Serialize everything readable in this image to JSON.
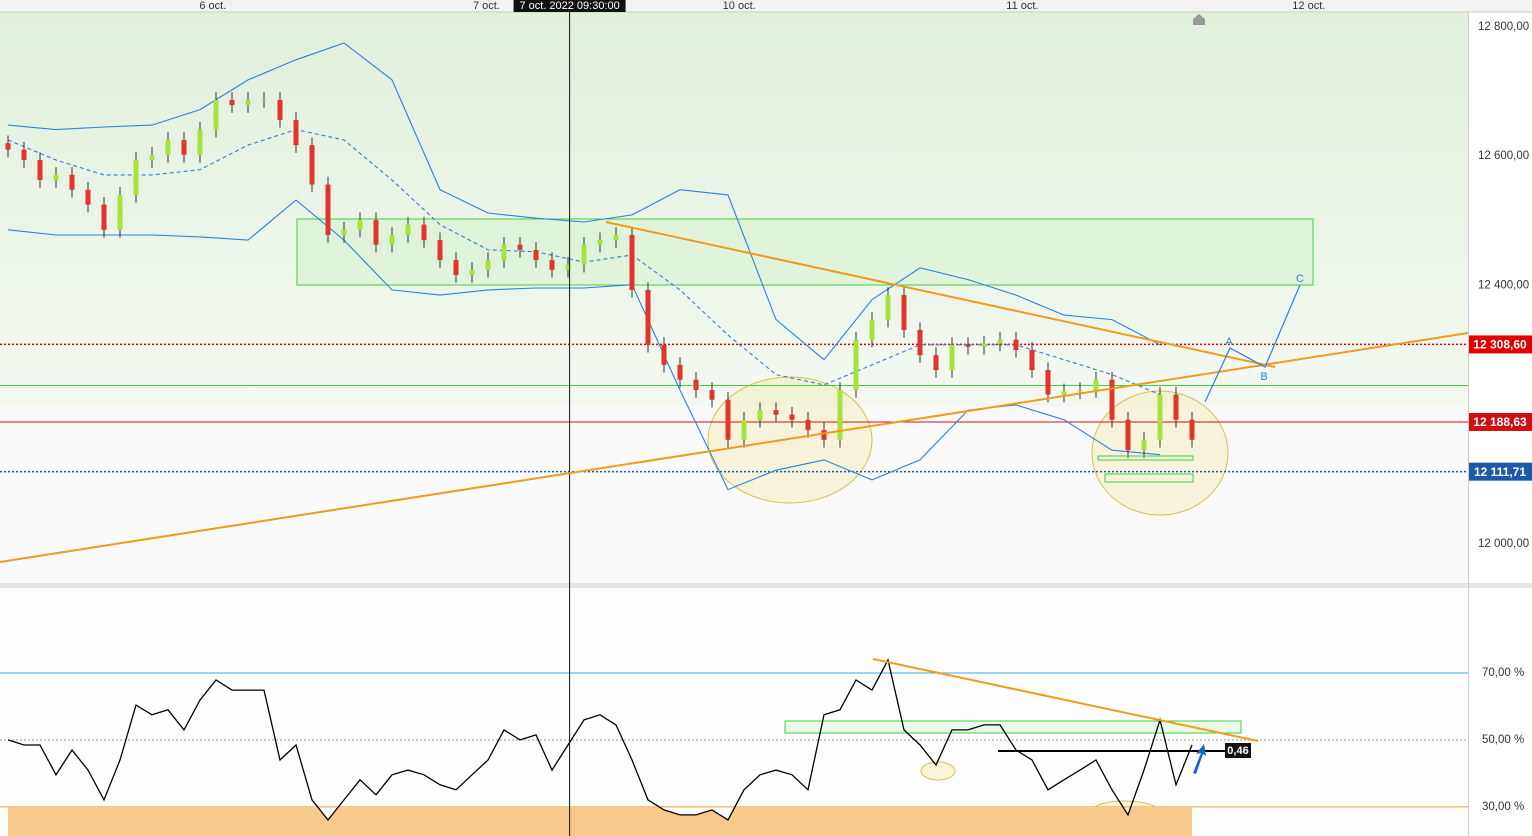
{
  "top_bar": {
    "crosshair": {
      "x": 35.1,
      "label": "7 oct. 2022 09:30:00"
    }
  },
  "chart_data": [
    {
      "type": "candlestick",
      "xlim": [
        -0.5,
        91.25
      ],
      "xticks": [
        {
          "value": 12.8,
          "label": "6 oct."
        },
        {
          "value": 29.9,
          "label": "7 oct."
        },
        {
          "value": 45.7,
          "label": "10 oct."
        },
        {
          "value": 63.4,
          "label": "11 oct."
        },
        {
          "value": 81.3,
          "label": "12 oct."
        }
      ],
      "ylim": [
        11941,
        12823
      ],
      "yticks": [
        {
          "value": 12800,
          "label": "12 800,00"
        },
        {
          "value": 12600,
          "label": "12 600,00"
        },
        {
          "value": 12400,
          "label": "12 400,00"
        },
        {
          "value": 12000,
          "label": "12 000,00"
        }
      ],
      "up_color": "#a6e23c",
      "down_color": "#e5332a",
      "candles": [
        [
          12620,
          12632,
          12598,
          12610
        ],
        [
          12610,
          12622,
          12582,
          12594
        ],
        [
          12594,
          12606,
          12551,
          12563
        ],
        [
          12563,
          12583,
          12551,
          12571
        ],
        [
          12571,
          12583,
          12536,
          12548
        ],
        [
          12548,
          12560,
          12513,
          12525
        ],
        [
          12525,
          12537,
          12474,
          12486
        ],
        [
          12486,
          12552,
          12474,
          12540
        ],
        [
          12540,
          12606,
          12528,
          12594
        ],
        [
          12594,
          12614,
          12582,
          12602
        ],
        [
          12602,
          12637,
          12590,
          12625
        ],
        [
          12625,
          12637,
          12590,
          12602
        ],
        [
          12602,
          12653,
          12590,
          12641
        ],
        [
          12641,
          12699,
          12629,
          12687
        ],
        [
          12687,
          12699,
          12667,
          12679
        ],
        [
          12679,
          12699,
          12667,
          12687
        ],
        [
          12687,
          12699,
          12675,
          12687
        ],
        [
          12687,
          12699,
          12644,
          12656
        ],
        [
          12656,
          12668,
          12605,
          12617
        ],
        [
          12617,
          12629,
          12544,
          12556
        ],
        [
          12556,
          12568,
          12466,
          12478
        ],
        [
          12478,
          12498,
          12466,
          12486
        ],
        [
          12486,
          12513,
          12474,
          12501
        ],
        [
          12501,
          12513,
          12451,
          12463
        ],
        [
          12463,
          12490,
          12451,
          12478
        ],
        [
          12478,
          12506,
          12466,
          12494
        ],
        [
          12494,
          12506,
          12458,
          12470
        ],
        [
          12470,
          12482,
          12427,
          12439
        ],
        [
          12439,
          12451,
          12404,
          12416
        ],
        [
          12416,
          12436,
          12404,
          12424
        ],
        [
          12424,
          12451,
          12412,
          12439
        ],
        [
          12439,
          12475,
          12427,
          12463
        ],
        [
          12463,
          12475,
          12443,
          12455
        ],
        [
          12455,
          12467,
          12427,
          12439
        ],
        [
          12439,
          12451,
          12412,
          12424
        ],
        [
          12424,
          12444,
          12412,
          12432
        ],
        [
          12432,
          12475,
          12420,
          12463
        ],
        [
          12463,
          12482,
          12451,
          12470
        ],
        [
          12470,
          12490,
          12458,
          12478
        ],
        [
          12478,
          12490,
          12381,
          12393
        ],
        [
          12393,
          12405,
          12296,
          12308
        ],
        [
          12308,
          12320,
          12265,
          12277
        ],
        [
          12277,
          12289,
          12242,
          12254
        ],
        [
          12254,
          12266,
          12226,
          12238
        ],
        [
          12238,
          12250,
          12211,
          12223
        ],
        [
          12223,
          12235,
          12149,
          12161
        ],
        [
          12161,
          12204,
          12149,
          12192
        ],
        [
          12192,
          12219,
          12180,
          12207
        ],
        [
          12207,
          12219,
          12188,
          12200
        ],
        [
          12200,
          12212,
          12180,
          12192
        ],
        [
          12192,
          12204,
          12164,
          12176
        ],
        [
          12176,
          12188,
          12149,
          12161
        ],
        [
          12161,
          12250,
          12149,
          12238
        ],
        [
          12238,
          12328,
          12226,
          12316
        ],
        [
          12316,
          12359,
          12304,
          12347
        ],
        [
          12347,
          12397,
          12335,
          12385
        ],
        [
          12385,
          12397,
          12319,
          12331
        ],
        [
          12331,
          12343,
          12280,
          12292
        ],
        [
          12292,
          12304,
          12257,
          12269
        ],
        [
          12269,
          12320,
          12257,
          12308
        ],
        [
          12308,
          12320,
          12293,
          12305
        ],
        [
          12305,
          12322,
          12293,
          12310
        ],
        [
          12310,
          12328,
          12298,
          12316
        ],
        [
          12316,
          12328,
          12288,
          12300
        ],
        [
          12300,
          12312,
          12257,
          12269
        ],
        [
          12269,
          12281,
          12219,
          12231
        ],
        [
          12231,
          12248,
          12219,
          12236
        ],
        [
          12236,
          12250,
          12224,
          12238
        ],
        [
          12238,
          12266,
          12226,
          12254
        ],
        [
          12254,
          12266,
          12180,
          12192
        ],
        [
          12192,
          12204,
          12133,
          12145
        ],
        [
          12145,
          12173,
          12133,
          12161
        ],
        [
          12161,
          12243,
          12149,
          12231
        ],
        [
          12231,
          12243,
          12180,
          12192
        ],
        [
          12192,
          12204,
          12149,
          12161
        ]
      ],
      "bands": {
        "color": "#2f7fe0",
        "x": [
          0,
          3,
          6,
          9,
          12,
          15,
          18,
          21,
          24,
          27,
          30,
          33,
          36,
          39,
          42,
          45,
          48,
          51,
          54,
          57,
          60,
          63,
          66,
          69,
          72
        ],
        "upper": [
          12648,
          12641,
          12645,
          12648,
          12672,
          12718,
          12749,
          12775,
          12718,
          12548,
          12512,
          12504,
          12498,
          12509,
          12548,
          12540,
          12347,
          12285,
          12378,
          12427,
          12409,
          12385,
          12354,
          12347,
          12308
        ],
        "middle": [
          12625,
          12594,
          12571,
          12571,
          12579,
          12617,
          12641,
          12625,
          12563,
          12494,
          12455,
          12452,
          12436,
          12447,
          12393,
          12323,
          12262,
          12246,
          12277,
          12308,
          12308,
          12308,
          12285,
          12262,
          12231
        ],
        "lower": [
          12486,
          12478,
          12478,
          12478,
          12475,
          12470,
          12532,
          12470,
          12393,
          12385,
          12393,
          12396,
          12396,
          12401,
          12238,
          12084,
          12114,
          12130,
          12099,
          12130,
          12207,
          12215,
          12192,
          12145,
          12138
        ]
      },
      "levels": [
        {
          "value": 12308.6,
          "label": "12 308,60",
          "color": "#e00000",
          "style": "dotted"
        },
        {
          "value": 12245,
          "color": "#3fcf3f",
          "style": "solid"
        },
        {
          "value": 12188.63,
          "label": "12 188,63",
          "color": "#d01010",
          "style": "solid"
        },
        {
          "value": 12111.71,
          "label": "12 111,71",
          "color": "#1c5aa8",
          "style": "dotted"
        }
      ],
      "labels": [
        "A",
        "B",
        "C"
      ]
    },
    {
      "type": "line",
      "xlim": [
        -0.5,
        91.25
      ],
      "ylim": [
        21.3,
        95.4
      ],
      "yticks": [
        {
          "value": 70,
          "label": "70,00 %"
        },
        {
          "value": 50,
          "label": "50,00 %"
        },
        {
          "value": 30,
          "label": "30,00 %"
        }
      ],
      "tick_colors": [
        "#3aa6e6",
        "#999999",
        "#f0a030"
      ],
      "fill_color": "#f7c98a",
      "color": "#000000",
      "values": [
        50,
        48.5,
        48.5,
        39.6,
        47,
        41,
        32.1,
        44,
        60.4,
        57.5,
        59,
        53,
        61.9,
        67.9,
        64.9,
        64.9,
        64.9,
        44,
        48.5,
        32.1,
        26.1,
        32.1,
        38.1,
        33.6,
        39.6,
        41,
        39.6,
        36.6,
        35.1,
        39.6,
        44,
        53,
        50,
        51.5,
        41,
        48.5,
        56,
        57.5,
        54.5,
        44,
        32.1,
        29.1,
        27.6,
        27.6,
        29.1,
        26.1,
        35.1,
        39.6,
        41,
        39.6,
        35.1,
        57.5,
        59,
        67.9,
        64.9,
        73.9,
        53,
        48.5,
        42.5,
        53,
        53,
        54.5,
        54.5,
        47,
        44,
        35.1,
        38.1,
        41,
        44,
        35.1,
        27.6,
        41,
        56,
        36.6,
        48.5
      ],
      "annotation": "0,46"
    }
  ]
}
